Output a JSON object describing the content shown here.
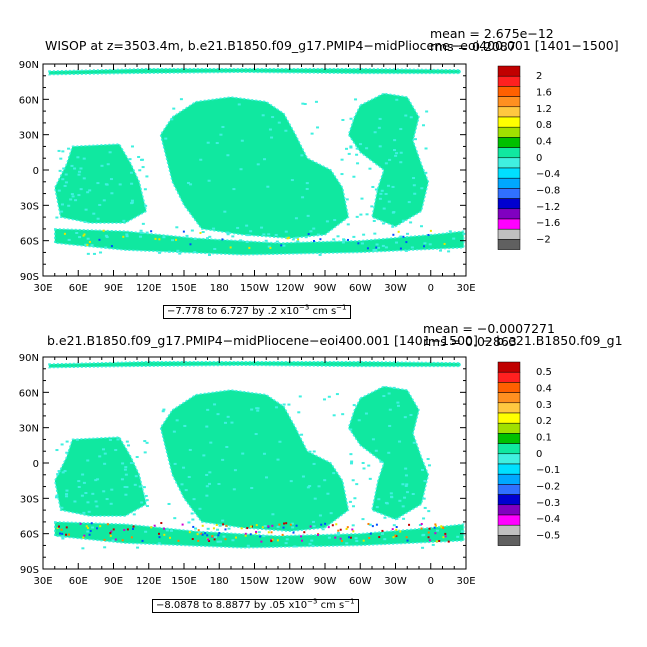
{
  "colors": {
    "ocean": "#10e8a0",
    "ocean_light": "#40f0e0",
    "coast_hi": "#e8e800",
    "coast_warm": "#ff8000",
    "coast_red": "#c00000",
    "coast_blue": "#0050ff",
    "coast_magenta": "#d000d0",
    "frame": "#000000"
  },
  "lon_labels": [
    "30E",
    "60E",
    "90E",
    "120E",
    "150E",
    "180",
    "150W",
    "120W",
    "90W",
    "60W",
    "30W",
    "0",
    "30E"
  ],
  "lat_labels": [
    "90N",
    "60N",
    "30N",
    "0",
    "30S",
    "60S",
    "90S"
  ],
  "panels": [
    {
      "title": "WISOP at z=3503.4m, b.e21.B1850.f09_g17.PMIP4−midPliocene−eoi400.001 [1401−1500]",
      "mean": "mean = 2.675e−12",
      "rms": "rms = 0.2087",
      "range_text": "−7.778 to 6.727 by .2 x10",
      "range_exp": "−3",
      "range_unit": " cm s",
      "range_unit_exp": "−1",
      "colorbar_labels": [
        "2",
        "1.6",
        "1.2",
        "0.8",
        "0.4",
        "0",
        "−0.4",
        "−0.8",
        "−1.2",
        "−1.6",
        "−2"
      ]
    },
    {
      "title": "b.e21.B1850.f09_g17.PMIP4−midPliocene−eoi400.001 [1401−1500] − b.e21.B1850.f09_g1",
      "mean": "mean = −0.0007271",
      "rms": "rms = 0.02863",
      "range_text": "−8.0878 to 8.8877 by .05 x10",
      "range_exp": "−3",
      "range_unit": " cm s",
      "range_unit_exp": "−1",
      "colorbar_labels": [
        "0.5",
        "0.4",
        "0.3",
        "0.2",
        "0.1",
        "0",
        "−0.1",
        "−0.2",
        "−0.3",
        "−0.4",
        "−0.5"
      ]
    }
  ],
  "colorbar_colors": [
    "#c00000",
    "#ff2020",
    "#ff6000",
    "#ff9020",
    "#ffc840",
    "#ffff00",
    "#a0e000",
    "#00c000",
    "#10e8a0",
    "#40f0e0",
    "#00e0ff",
    "#00a8ff",
    "#3070ff",
    "#0000d0",
    "#8000c0",
    "#ff00ff",
    "#c0c0c0",
    "#606060"
  ]
}
